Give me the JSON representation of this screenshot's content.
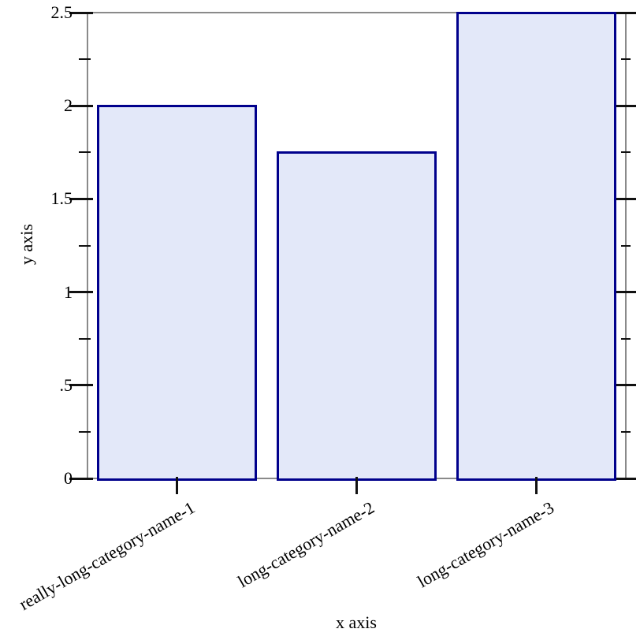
{
  "chart_data": {
    "type": "bar",
    "title": "",
    "xlabel": "x axis",
    "ylabel": "y axis",
    "categories": [
      "really-long-category-name-1",
      "long-category-name-2",
      "long-category-name-3"
    ],
    "values": [
      2,
      1.75,
      2.5
    ],
    "ylim": [
      0,
      2.5
    ],
    "y_major_ticks": [
      {
        "value": 0,
        "label": "0"
      },
      {
        "value": 0.5,
        "label": ".5"
      },
      {
        "value": 1,
        "label": "1"
      },
      {
        "value": 1.5,
        "label": "1.5"
      },
      {
        "value": 2,
        "label": "2"
      },
      {
        "value": 2.5,
        "label": "2.5"
      }
    ],
    "y_minor_ticks": [
      0.25,
      0.75,
      1.25,
      1.75,
      2.25
    ],
    "category_label_rotation_deg": -30,
    "grid": false,
    "legend_position": "none",
    "colors": {
      "bar_fill": "#e3e8f9",
      "bar_border": "#00008c",
      "frame": "#8a8a8a",
      "tick": "#111111",
      "text": "#000000",
      "background": "#ffffff"
    }
  }
}
